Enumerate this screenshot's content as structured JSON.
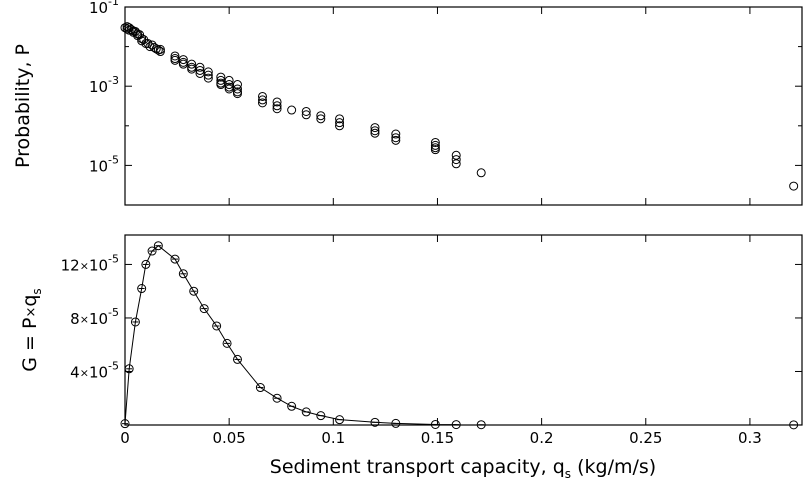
{
  "chart_data": [
    {
      "id": "probability",
      "type": "scatter",
      "xlim": [
        0,
        0.325
      ],
      "ylim": [
        1e-06,
        0.1
      ],
      "ylog": true,
      "ylabel": "Probability, P",
      "yticks": [
        {
          "value": 1e-05,
          "base": "10",
          "exp": "-5"
        },
        {
          "value": 0.001,
          "base": "10",
          "exp": "-3"
        },
        {
          "value": 0.1,
          "base": "10",
          "exp": "-1"
        }
      ],
      "points": [
        [
          0.0,
          0.03
        ],
        [
          0.001,
          0.032
        ],
        [
          0.001,
          0.028
        ],
        [
          0.002,
          0.03
        ],
        [
          0.002,
          0.026
        ],
        [
          0.003,
          0.027
        ],
        [
          0.004,
          0.025
        ],
        [
          0.004,
          0.023
        ],
        [
          0.005,
          0.024
        ],
        [
          0.006,
          0.021
        ],
        [
          0.006,
          0.019
        ],
        [
          0.007,
          0.02
        ],
        [
          0.008,
          0.016
        ],
        [
          0.008,
          0.014
        ],
        [
          0.009,
          0.015
        ],
        [
          0.01,
          0.012
        ],
        [
          0.011,
          0.012
        ],
        [
          0.012,
          0.01
        ],
        [
          0.013,
          0.011
        ],
        [
          0.014,
          0.0095
        ],
        [
          0.015,
          0.0088
        ],
        [
          0.016,
          0.0082
        ],
        [
          0.017,
          0.0075
        ],
        [
          0.017,
          0.0085
        ],
        [
          0.024,
          0.0058
        ],
        [
          0.024,
          0.005
        ],
        [
          0.024,
          0.0045
        ],
        [
          0.028,
          0.0047
        ],
        [
          0.028,
          0.004
        ],
        [
          0.028,
          0.0036
        ],
        [
          0.032,
          0.0036
        ],
        [
          0.032,
          0.003
        ],
        [
          0.032,
          0.0027
        ],
        [
          0.036,
          0.003
        ],
        [
          0.036,
          0.0025
        ],
        [
          0.036,
          0.0021
        ],
        [
          0.04,
          0.0023
        ],
        [
          0.04,
          0.0019
        ],
        [
          0.04,
          0.0016
        ],
        [
          0.046,
          0.0017
        ],
        [
          0.046,
          0.0014
        ],
        [
          0.046,
          0.0012
        ],
        [
          0.046,
          0.0011
        ],
        [
          0.05,
          0.0014
        ],
        [
          0.05,
          0.0011
        ],
        [
          0.05,
          0.00095
        ],
        [
          0.05,
          0.00085
        ],
        [
          0.054,
          0.0011
        ],
        [
          0.054,
          0.00085
        ],
        [
          0.054,
          0.00072
        ],
        [
          0.054,
          0.00065
        ],
        [
          0.066,
          0.00055
        ],
        [
          0.066,
          0.00045
        ],
        [
          0.066,
          0.00038
        ],
        [
          0.073,
          0.0004
        ],
        [
          0.073,
          0.00032
        ],
        [
          0.073,
          0.00027
        ],
        [
          0.08,
          0.00025
        ],
        [
          0.087,
          0.00023
        ],
        [
          0.087,
          0.00019
        ],
        [
          0.094,
          0.00018
        ],
        [
          0.094,
          0.00015
        ],
        [
          0.103,
          0.00015
        ],
        [
          0.103,
          0.00012
        ],
        [
          0.103,
          0.0001
        ],
        [
          0.12,
          9e-05
        ],
        [
          0.12,
          7.5e-05
        ],
        [
          0.12,
          6.5e-05
        ],
        [
          0.13,
          6.2e-05
        ],
        [
          0.13,
          5e-05
        ],
        [
          0.13,
          4.3e-05
        ],
        [
          0.149,
          3.8e-05
        ],
        [
          0.149,
          3.2e-05
        ],
        [
          0.149,
          2.8e-05
        ],
        [
          0.149,
          2.5e-05
        ],
        [
          0.159,
          1.8e-05
        ],
        [
          0.159,
          1.4e-05
        ],
        [
          0.159,
          1.1e-05
        ],
        [
          0.171,
          6.5e-06
        ],
        [
          0.321,
          3e-06
        ]
      ]
    },
    {
      "id": "G",
      "type": "line",
      "markers": "circle",
      "xlim": [
        0,
        0.325
      ],
      "ylim": [
        0,
        0.000142
      ],
      "xlabel_parts": [
        "Sediment transport capacity, q",
        "s",
        " (kg/m/s)"
      ],
      "ylabel_parts": [
        "G = P",
        "×",
        "q",
        "s"
      ],
      "xticks": [
        {
          "value": 0,
          "label": "0"
        },
        {
          "value": 0.05,
          "label": "0.05"
        },
        {
          "value": 0.1,
          "label": "0.1"
        },
        {
          "value": 0.15,
          "label": "0.15"
        },
        {
          "value": 0.2,
          "label": "0.2"
        },
        {
          "value": 0.25,
          "label": "0.25"
        },
        {
          "value": 0.3,
          "label": "0.3"
        }
      ],
      "yticks": [
        {
          "value": 4e-05,
          "mant": "4",
          "times": "×",
          "base": "10",
          "exp": "-5"
        },
        {
          "value": 8e-05,
          "mant": "8",
          "times": "×",
          "base": "10",
          "exp": "-5"
        },
        {
          "value": 0.00012,
          "mant": "12",
          "times": "×",
          "base": "10",
          "exp": "-5"
        }
      ],
      "points": [
        [
          0.0,
          1e-06
        ],
        [
          0.002,
          4.2e-05
        ],
        [
          0.005,
          7.7e-05
        ],
        [
          0.008,
          0.000102
        ],
        [
          0.01,
          0.00012
        ],
        [
          0.013,
          0.00013
        ],
        [
          0.016,
          0.000134
        ],
        [
          0.024,
          0.000124
        ],
        [
          0.028,
          0.000113
        ],
        [
          0.033,
          0.0001
        ],
        [
          0.038,
          8.7e-05
        ],
        [
          0.044,
          7.4e-05
        ],
        [
          0.049,
          6.1e-05
        ],
        [
          0.054,
          4.9e-05
        ],
        [
          0.065,
          2.8e-05
        ],
        [
          0.073,
          2e-05
        ],
        [
          0.08,
          1.4e-05
        ],
        [
          0.087,
          9.8e-06
        ],
        [
          0.094,
          7e-06
        ],
        [
          0.103,
          4e-06
        ],
        [
          0.12,
          2e-06
        ],
        [
          0.13,
          1.2e-06
        ],
        [
          0.149,
          4e-07
        ],
        [
          0.159,
          3e-07
        ],
        [
          0.171,
          2e-07
        ],
        [
          0.321,
          1e-07
        ]
      ]
    }
  ]
}
